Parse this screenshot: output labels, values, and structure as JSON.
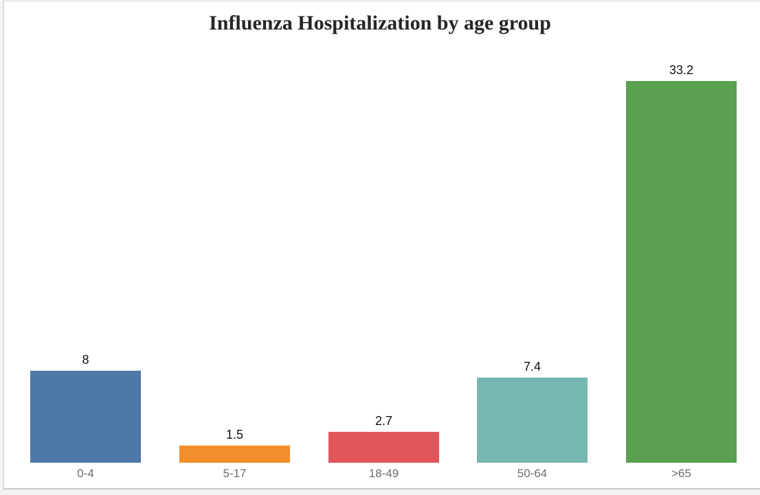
{
  "page": {
    "background_color": "#f3f3f3",
    "panel_background": "#ffffff",
    "panel_border_color": "#d9d9d9"
  },
  "chart_data": {
    "type": "bar",
    "title": "Influenza Hospitalization by age group",
    "categories": [
      "0-4",
      "5-17",
      "18-49",
      "50-64",
      ">65"
    ],
    "values": [
      8,
      1.5,
      2.7,
      7.4,
      33.2
    ],
    "value_labels": [
      "8",
      "1.5",
      "2.7",
      "7.4",
      "33.2"
    ],
    "bar_colors": [
      "#4e79a7",
      "#f28e2b",
      "#e15759",
      "#76b7b2",
      "#59a14f"
    ],
    "xlabel": "",
    "ylabel": "",
    "ylim": [
      0,
      35
    ],
    "grid": false,
    "legend": false,
    "axis_lines": false,
    "value_label_color": "#111111",
    "tick_label_color": "#6d6d6d",
    "title_color": "#262626"
  }
}
